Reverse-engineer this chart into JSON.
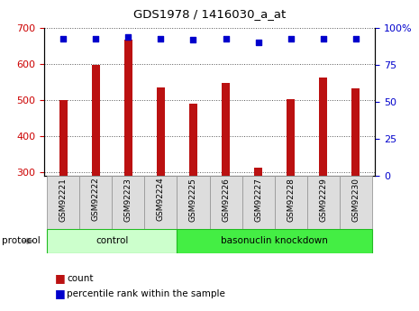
{
  "title": "GDS1978 / 1416030_a_at",
  "samples": [
    "GSM92221",
    "GSM92222",
    "GSM92223",
    "GSM92224",
    "GSM92225",
    "GSM92226",
    "GSM92227",
    "GSM92228",
    "GSM92229",
    "GSM92230"
  ],
  "counts": [
    500,
    597,
    668,
    535,
    490,
    548,
    312,
    502,
    562,
    533
  ],
  "percentile_ranks": [
    93,
    93,
    94,
    93,
    92,
    93,
    90,
    93,
    93,
    93
  ],
  "ylim_left": [
    290,
    700
  ],
  "ylim_right": [
    0,
    100
  ],
  "yticks_left": [
    300,
    400,
    500,
    600,
    700
  ],
  "yticks_right": [
    0,
    25,
    50,
    75,
    100
  ],
  "bar_color": "#bb1111",
  "dot_color": "#0000cc",
  "bar_bottom": 290,
  "groups": [
    {
      "label": "control",
      "start": 0,
      "end": 4,
      "color": "#ccffcc"
    },
    {
      "label": "basonuclin knockdown",
      "start": 4,
      "end": 10,
      "color": "#44ee44"
    }
  ],
  "legend_count_color": "#bb1111",
  "legend_dot_color": "#0000cc",
  "grid_color": "#555555",
  "background_color": "#ffffff",
  "tick_label_color_left": "#cc0000",
  "tick_label_color_right": "#0000cc",
  "sample_box_color": "#dddddd",
  "sample_box_edge": "#999999",
  "bar_width": 0.25
}
